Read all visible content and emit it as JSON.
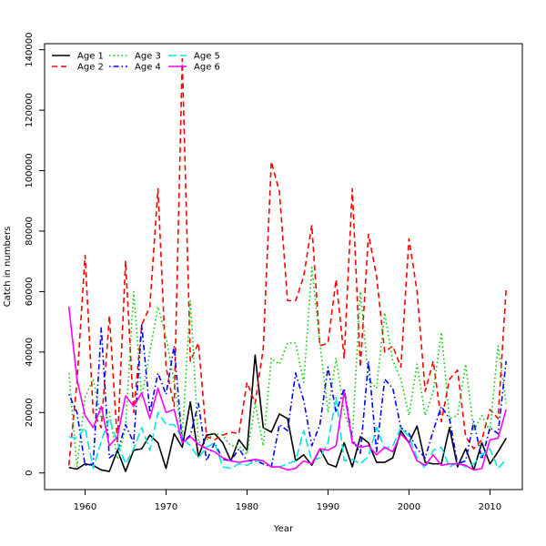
{
  "chart_data": {
    "type": "line",
    "title": "",
    "xlabel": "Year",
    "ylabel": "Catch in numbers",
    "xlim": [
      1955.0,
      2014.0
    ],
    "ylim": [
      -5500,
      142000
    ],
    "x_ticks": [
      1960,
      1970,
      1980,
      1990,
      2000,
      2010
    ],
    "y_ticks": [
      0,
      20000,
      40000,
      60000,
      80000,
      100000,
      120000,
      140000
    ],
    "grid": false,
    "legend": {
      "placement": "top-left",
      "columns": 3
    },
    "x": [
      1958,
      1959,
      1960,
      1961,
      1962,
      1963,
      1964,
      1965,
      1966,
      1967,
      1968,
      1969,
      1970,
      1971,
      1972,
      1973,
      1974,
      1975,
      1976,
      1977,
      1978,
      1979,
      1980,
      1981,
      1982,
      1983,
      1984,
      1985,
      1986,
      1987,
      1988,
      1989,
      1990,
      1991,
      1992,
      1993,
      1994,
      1995,
      1996,
      1997,
      1998,
      1999,
      2000,
      2001,
      2002,
      2003,
      2004,
      2005,
      2006,
      2007,
      2008,
      2009,
      2010,
      2011,
      2012
    ],
    "series": [
      {
        "name": "Age 1",
        "color": "#000000",
        "dash": "solid",
        "width": 1.6,
        "values": [
          1800,
          1300,
          3000,
          2500,
          1000,
          500,
          7500,
          500,
          7500,
          8000,
          12500,
          10000,
          1500,
          13000,
          8500,
          23500,
          5500,
          12500,
          13000,
          10000,
          4000,
          11000,
          7500,
          39000,
          15000,
          13500,
          19500,
          18000,
          4000,
          6000,
          2500,
          8000,
          3000,
          2000,
          10000,
          2000,
          12000,
          10000,
          3500,
          3500,
          5000,
          14000,
          10000,
          15500,
          3500,
          3000,
          3000,
          15000,
          2000,
          8000,
          1000,
          10000,
          3000,
          7000,
          11500
        ]
      },
      {
        "name": "Age 2",
        "color": "#ff0000",
        "dash": "dashed",
        "width": 1.6,
        "values": [
          2500,
          30000,
          72000,
          20000,
          15000,
          52000,
          10000,
          70000,
          20000,
          49000,
          55000,
          94000,
          35000,
          22000,
          137000,
          37000,
          43000,
          12000,
          11000,
          12500,
          13500,
          13000,
          30000,
          23000,
          41000,
          103000,
          93000,
          57000,
          57000,
          65000,
          82000,
          42000,
          43000,
          64000,
          38000,
          94000,
          35000,
          79000,
          65000,
          40000,
          42000,
          35000,
          77500,
          60000,
          27000,
          37000,
          17000,
          31000,
          34000,
          12000,
          8000,
          11000,
          21000,
          18000,
          61000
        ]
      },
      {
        "name": "Age 3",
        "color": "#00cc00",
        "dash": "dotted",
        "width": 1.6,
        "values": [
          33000,
          2000,
          25000,
          31000,
          18000,
          20000,
          4500,
          15000,
          60000,
          25000,
          40000,
          55000,
          45000,
          30000,
          12000,
          57000,
          10000,
          11000,
          13000,
          12500,
          9000,
          9000,
          6000,
          23000,
          9000,
          38000,
          36000,
          43000,
          43000,
          30000,
          68000,
          43000,
          20000,
          38000,
          20000,
          12000,
          60000,
          31000,
          28000,
          53000,
          37000,
          31000,
          19000,
          36000,
          19000,
          27000,
          46500,
          18000,
          19000,
          36000,
          14000,
          19000,
          14000,
          42000,
          23000
        ]
      },
      {
        "name": "Age 4",
        "color": "#0000ff",
        "dash": "dashdot",
        "width": 1.6,
        "values": [
          26000,
          20000,
          2500,
          3000,
          48000,
          5000,
          7000,
          16000,
          10000,
          49000,
          20000,
          33000,
          26000,
          42000,
          10000,
          12500,
          23000,
          4000,
          10000,
          4500,
          4000,
          8000,
          4000,
          4000,
          3000,
          2000,
          16000,
          14000,
          33000,
          24000,
          9000,
          16000,
          35000,
          20000,
          28000,
          11000,
          6500,
          37000,
          7000,
          31000,
          28000,
          15000,
          13000,
          8000,
          5000,
          14000,
          22000,
          18000,
          3000,
          4000,
          17000,
          4500,
          15000,
          13000,
          37000
        ]
      },
      {
        "name": "Age 5",
        "color": "#00e5e5",
        "dash": "longdash",
        "width": 1.6,
        "values": [
          12000,
          11500,
          15000,
          1500,
          10500,
          18000,
          10000,
          3000,
          8000,
          15000,
          7500,
          20000,
          16000,
          16000,
          11500,
          9000,
          5000,
          8500,
          10000,
          2000,
          1500,
          3000,
          2500,
          4000,
          4000,
          2000,
          2000,
          3000,
          4000,
          14000,
          4000,
          5000,
          10000,
          25000,
          4000,
          4500,
          3000,
          5500,
          15000,
          8000,
          9000,
          15000,
          12000,
          5000,
          1500,
          7500,
          8500,
          2000,
          3500,
          2000,
          3000,
          6000,
          8000,
          1500,
          4500
        ]
      },
      {
        "name": "Age 6",
        "color": "#ff00ff",
        "dash": "solid",
        "width": 1.6,
        "values": [
          55000,
          31000,
          19000,
          15000,
          22000,
          9000,
          12000,
          25500,
          22000,
          26500,
          18000,
          28000,
          20000,
          21000,
          10000,
          12000,
          9500,
          8000,
          7000,
          5000,
          4000,
          3500,
          4000,
          4500,
          4000,
          2000,
          2000,
          1000,
          1500,
          4000,
          3000,
          8000,
          7500,
          9000,
          27000,
          10000,
          8500,
          9000,
          6000,
          8500,
          7000,
          13000,
          10000,
          4000,
          2500,
          6000,
          2500,
          3000,
          3000,
          2500,
          1000,
          1500,
          11000,
          11500,
          21000
        ]
      }
    ]
  }
}
